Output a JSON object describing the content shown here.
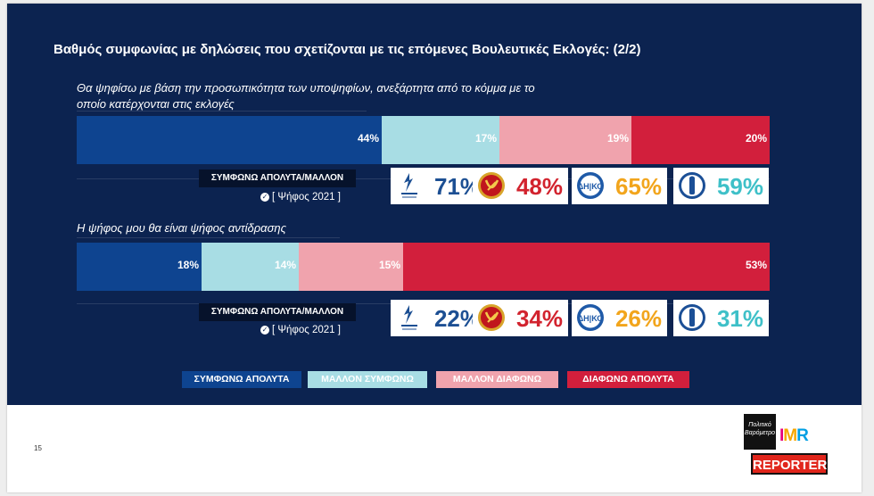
{
  "title": "Βαθμός συμφωνίας με δηλώσεις που σχετίζονται με τις επόμενες Βουλευτικές Εκλογές: (2/2)",
  "page_number": "15",
  "colors": {
    "panel": "#0c2350",
    "agree_fully": "#0e4490",
    "agree_rather": "#a8dde4",
    "disagree_rather": "#f0a3ad",
    "disagree_fully": "#d21f3c"
  },
  "legend": [
    {
      "label": "ΣΥΜΦΩΝΩ ΑΠΟΛΥΤΑ",
      "color": "#0e4490"
    },
    {
      "label": "ΜΑΛΛΟΝ ΣΥΜΦΩΝΩ",
      "color": "#a8dde4"
    },
    {
      "label": "ΜΑΛΛΟΝ ΔΙΑΦΩΝΩ",
      "color": "#f0a3ad"
    },
    {
      "label": "ΔΙΑΦΩΝΩ ΑΠΟΛΥΤΑ",
      "color": "#d21f3c"
    }
  ],
  "party_icons": [
    "disy-logo-icon",
    "akel-logo-icon",
    "diko-logo-icon",
    "edek-logo-icon"
  ],
  "chart_data": {
    "type": "bar",
    "stacked": true,
    "orientation": "horizontal",
    "series_names": [
      "ΣΥΜΦΩΝΩ ΑΠΟΛΥΤΑ",
      "ΜΑΛΛΟΝ ΣΥΜΦΩΝΩ",
      "ΜΑΛΛΟΝ ΔΙΑΦΩΝΩ",
      "ΔΙΑΦΩΝΩ ΑΠΟΛΥΤΑ"
    ],
    "questions": [
      {
        "text_lines": [
          "Θα ψηφίσω με βάση την προσωπικότητα των υποψηφίων, ανεξάρτητα από το κόμμα με το",
          "οποίο κατέρχονται στις εκλογές"
        ],
        "values": [
          44,
          17,
          19,
          20
        ],
        "labels": [
          "44%",
          "17%",
          "19%",
          "20%"
        ],
        "agree_label": "ΣΥΜΦΩΝΩ ΑΠΟΛΥΤΑ/ΜΑΛΛΟΝ",
        "vote_label": "[ Ψήφος 2021 ]",
        "parties": [
          {
            "icon": "disy-logo-icon",
            "value": "71%"
          },
          {
            "icon": "akel-logo-icon",
            "value": "48%"
          },
          {
            "icon": "diko-logo-icon",
            "value": "65%"
          },
          {
            "icon": "edek-logo-icon",
            "value": "59%"
          }
        ]
      },
      {
        "text_lines": [
          "Η ψήφος μου θα είναι ψήφος αντίδρασης"
        ],
        "values": [
          18,
          14,
          15,
          53
        ],
        "labels": [
          "18%",
          "14%",
          "15%",
          "53%"
        ],
        "agree_label": "ΣΥΜΦΩΝΩ ΑΠΟΛΥΤΑ/ΜΑΛΛΟΝ",
        "vote_label": "[ Ψήφος 2021 ]",
        "parties": [
          {
            "icon": "disy-logo-icon",
            "value": "22%"
          },
          {
            "icon": "akel-logo-icon",
            "value": "34%"
          },
          {
            "icon": "diko-logo-icon",
            "value": "26%"
          },
          {
            "icon": "edek-logo-icon",
            "value": "31%"
          }
        ]
      }
    ]
  },
  "branding": {
    "logo_box_text": "Πολιτικό Βαρόμετρο",
    "imr": "IMR",
    "reporter": "REPORTER"
  }
}
